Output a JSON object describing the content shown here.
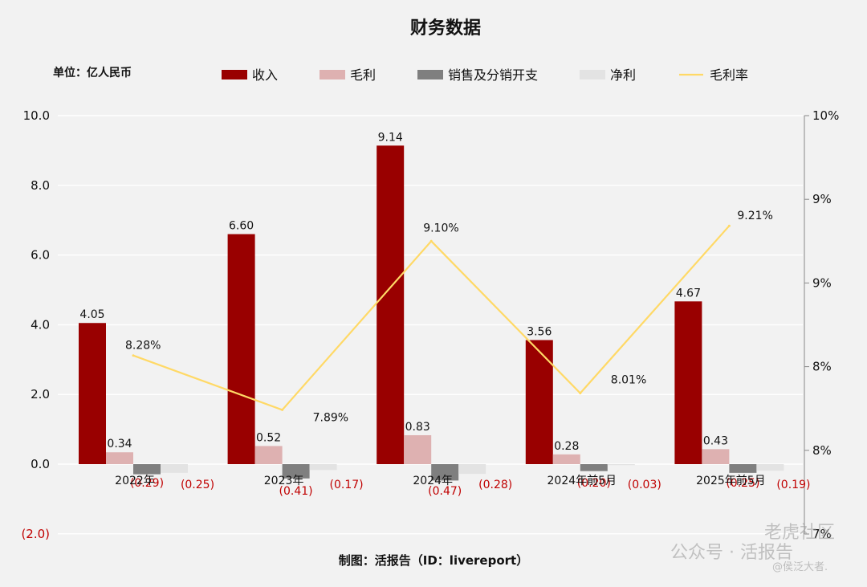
{
  "chart_data": {
    "type": "bar",
    "title": "财务数据",
    "unit_label": "单位：亿人民币",
    "categories": [
      "2022年",
      "2023年",
      "2024年",
      "2024年前5月",
      "2025年前5月"
    ],
    "series": [
      {
        "name": "收入",
        "kind": "bar",
        "color": "#990000",
        "values": [
          4.05,
          6.6,
          9.14,
          3.56,
          4.67
        ],
        "labels": [
          "4.05",
          "6.60",
          "9.14",
          "3.56",
          "4.67"
        ]
      },
      {
        "name": "毛利",
        "kind": "bar",
        "color": "#deb1b1",
        "values": [
          0.34,
          0.52,
          0.83,
          0.28,
          0.43
        ],
        "labels": [
          "0.34",
          "0.52",
          "0.83",
          "0.28",
          "0.43"
        ]
      },
      {
        "name": "销售及分销开支",
        "kind": "bar",
        "color": "#7f7f7f",
        "values": [
          -0.29,
          -0.41,
          -0.47,
          -0.2,
          -0.25
        ],
        "labels": [
          "(0.29)",
          "(0.41)",
          "(0.47)",
          "(0.20)",
          "(0.25)"
        ]
      },
      {
        "name": "净利",
        "kind": "bar",
        "color": "#e3e3e3",
        "values": [
          -0.25,
          -0.17,
          -0.28,
          -0.03,
          -0.19
        ],
        "labels": [
          "(0.25)",
          "(0.17)",
          "(0.28)",
          "(0.03)",
          "(0.19)"
        ]
      },
      {
        "name": "毛利率",
        "kind": "line",
        "axis": "right",
        "color": "#ffd966",
        "values": [
          8.28,
          7.89,
          9.1,
          8.01,
          9.21
        ],
        "labels": [
          "8.28%",
          "7.89%",
          "9.10%",
          "8.01%",
          "9.21%"
        ]
      }
    ],
    "y_left": {
      "min": -2.0,
      "max": 10.0,
      "ticks": [
        "10.0",
        "8.0",
        "6.0",
        "4.0",
        "2.0",
        "0.0",
        "(2.0)"
      ]
    },
    "y_right": {
      "min": 7.0,
      "max": 10.0,
      "ticks": [
        "10%",
        "9%",
        "9%",
        "8%",
        "8%",
        "7%"
      ]
    },
    "grid": true,
    "legend_position": "top"
  },
  "footer": "制图：活报告（ID：livereport）",
  "watermarks": {
    "main": "公众号 · 活报告",
    "corner": "老虎社区",
    "small": "@侯泛大者."
  }
}
